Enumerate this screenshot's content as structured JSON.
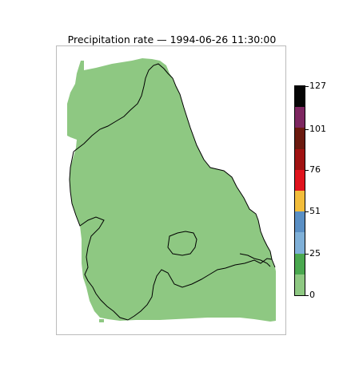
{
  "title": "Precipitation rate — 1994-06-26 11:30:00",
  "colors": {
    "land_fill": "#8ec882",
    "boundary": "#000000",
    "frame": "#bbbbbb"
  },
  "colorbar": {
    "min": 0,
    "max": 127,
    "tick_labels": [
      "0",
      "25",
      "51",
      "76",
      "101",
      "127"
    ],
    "tick_values": [
      0,
      25,
      51,
      76,
      101,
      127
    ],
    "bins": [
      {
        "from": 0,
        "to": 12.7,
        "color": "#8ec882"
      },
      {
        "from": 12.7,
        "to": 25.4,
        "color": "#4aa84f"
      },
      {
        "from": 25.4,
        "to": 38.1,
        "color": "#7fb0d8"
      },
      {
        "from": 38.1,
        "to": 50.8,
        "color": "#5a8fc4"
      },
      {
        "from": 50.8,
        "to": 63.5,
        "color": "#f2bd3b"
      },
      {
        "from": 63.5,
        "to": 76.2,
        "color": "#e0141e"
      },
      {
        "from": 76.2,
        "to": 88.9,
        "color": "#a01212"
      },
      {
        "from": 88.9,
        "to": 101.6,
        "color": "#6b1a0f"
      },
      {
        "from": 101.6,
        "to": 114.3,
        "color": "#7d2660"
      },
      {
        "from": 114.3,
        "to": 127,
        "color": "#050505"
      }
    ]
  }
}
